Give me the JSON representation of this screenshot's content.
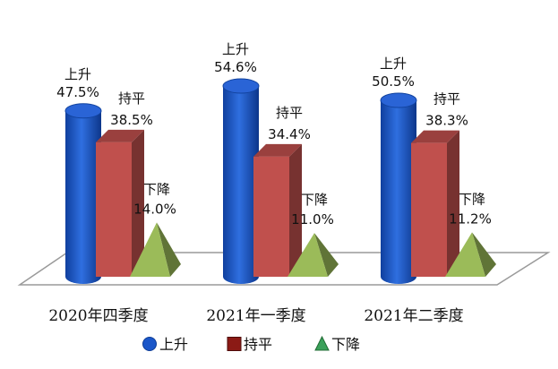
{
  "chart_data": {
    "type": "bar",
    "categories": [
      "2020年四季度",
      "2021年一季度",
      "2021年二季度"
    ],
    "series": [
      {
        "name": "上升",
        "values": [
          47.5,
          54.6,
          50.5
        ],
        "color": "#1a56c9",
        "shape": "cylinder"
      },
      {
        "name": "持平",
        "values": [
          38.5,
          34.4,
          38.3
        ],
        "color": "#c0504d",
        "shape": "box"
      },
      {
        "name": "下降",
        "values": [
          14.0,
          11.0,
          11.2
        ],
        "color": "#9bbb59",
        "shape": "pyramid"
      }
    ],
    "value_labels": [
      [
        "47.5%",
        "38.5%",
        "14.0%"
      ],
      [
        "54.6%",
        "34.4%",
        "11.0%"
      ],
      [
        "50.5%",
        "38.3%",
        "11.2%"
      ]
    ],
    "legend_position": "bottom-center",
    "grid": false
  }
}
